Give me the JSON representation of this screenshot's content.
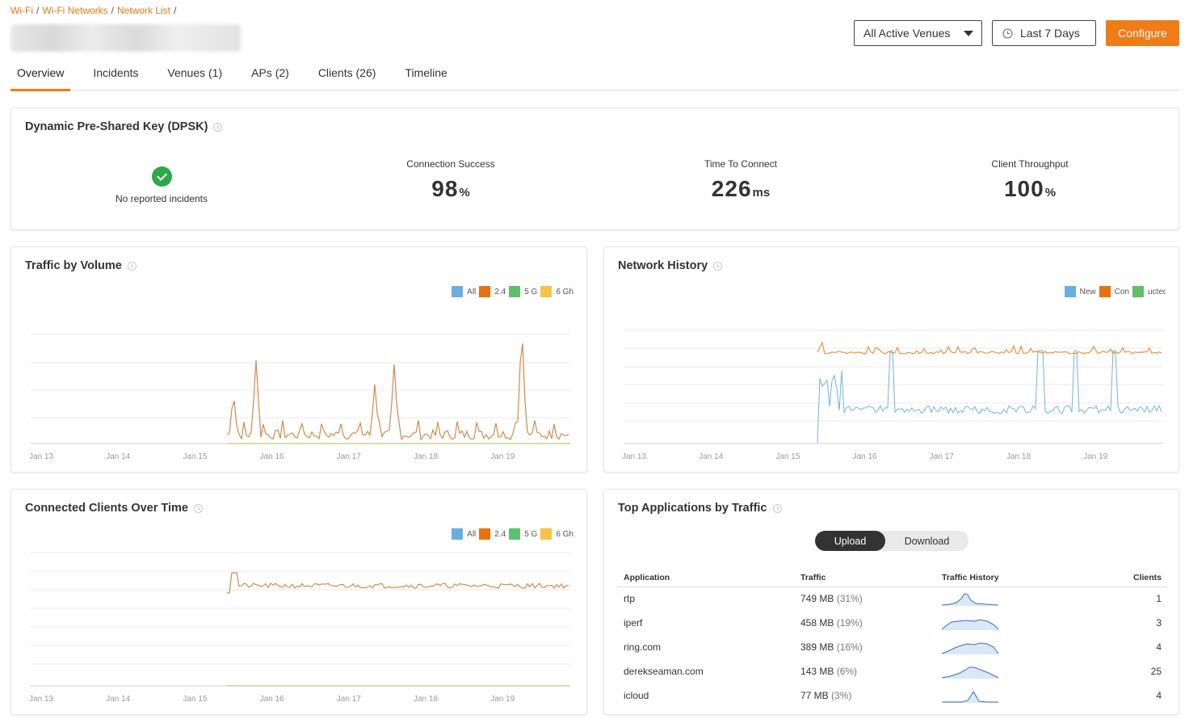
{
  "breadcrumb": [
    {
      "label": "Wi-Fi"
    },
    {
      "label": "Wi-Fi Networks"
    },
    {
      "label": "Network List"
    }
  ],
  "breadcrumb_separator": "/",
  "header": {
    "venue_select": "All Active Venues",
    "date_range": "Last 7 Days",
    "configure": "Configure"
  },
  "tabs": [
    {
      "label": "Overview",
      "active": true
    },
    {
      "label": "Incidents"
    },
    {
      "label": "Venues (1)"
    },
    {
      "label": "APs (2)"
    },
    {
      "label": "Clients (26)"
    },
    {
      "label": "Timeline"
    }
  ],
  "dpsk": {
    "title": "Dynamic Pre-Shared Key (DPSK)",
    "incidents_label": "No reported incidents",
    "kpis": [
      {
        "label": "Connection Success",
        "value": "98",
        "unit": "%"
      },
      {
        "label": "Time To Connect",
        "value": "226",
        "unit": "ms"
      },
      {
        "label": "Client Throughput",
        "value": "100",
        "unit": "%"
      }
    ]
  },
  "colors": {
    "accent": "#ef7c16",
    "all": "#6aaee0",
    "band24": "#e8700d",
    "band5": "#5fbf6c",
    "band6": "#f6c344",
    "history_orange": "#e4933f",
    "history_blue": "#72b3df"
  },
  "traffic_by_volume": {
    "title": "Traffic by Volume"
  },
  "network_history": {
    "title": "Network History"
  },
  "connected_clients": {
    "title": "Connected Clients Over Time"
  },
  "top_apps": {
    "title": "Top Applications by Traffic",
    "upload": "Upload",
    "download": "Download",
    "selected": "Upload",
    "columns": {
      "application": "Application",
      "traffic": "Traffic",
      "history": "Traffic History",
      "clients": "Clients"
    },
    "rows": [
      {
        "app": "rtp",
        "traffic": "749 MB",
        "pct": "(31%)",
        "clients": "1"
      },
      {
        "app": "iperf",
        "traffic": "458 MB",
        "pct": "(19%)",
        "clients": "3"
      },
      {
        "app": "ring.com",
        "traffic": "389 MB",
        "pct": "(16%)",
        "clients": "4"
      },
      {
        "app": "derekseaman.com",
        "traffic": "143 MB",
        "pct": "(6%)",
        "clients": "25"
      },
      {
        "app": "icloud",
        "traffic": "77 MB",
        "pct": "(3%)",
        "clients": "4"
      }
    ]
  },
  "chart_data": [
    {
      "id": "traffic_by_volume",
      "type": "line",
      "x_labels": [
        "Jan 13",
        "Jan 14",
        "Jan 15",
        "Jan 16",
        "Jan 17",
        "Jan 18",
        "Jan 19"
      ],
      "legend": [
        "All",
        "2.4",
        "5 G",
        "6 Gh"
      ],
      "grid": true,
      "series": [
        {
          "name": "2.4",
          "color": "#e8700d",
          "values": [
            0,
            0,
            0,
            0,
            0,
            0,
            0,
            0,
            0,
            0,
            0,
            0,
            0,
            0,
            0,
            0,
            0,
            0,
            0,
            0,
            0,
            0,
            0,
            0,
            0,
            0,
            0,
            0,
            0,
            0,
            0,
            0,
            0,
            0,
            0,
            0,
            0,
            0,
            0,
            0,
            0,
            0,
            0,
            0,
            0,
            0,
            0,
            0,
            0,
            0,
            0,
            0,
            0,
            0,
            0,
            0,
            0,
            0,
            0,
            0,
            0,
            0,
            0,
            0,
            0,
            0,
            0,
            0,
            0,
            0,
            0,
            0,
            0,
            0,
            0,
            0,
            0,
            0,
            0,
            0,
            0,
            0,
            0,
            0,
            0,
            0,
            0,
            0,
            0,
            0,
            0,
            0,
            0,
            0,
            0,
            0,
            0,
            0,
            0,
            0,
            0,
            0,
            0,
            0,
            0,
            0,
            0,
            0,
            0,
            0,
            0,
            0,
            0,
            0,
            0,
            0,
            0,
            0,
            0,
            0,
            0,
            0,
            0,
            0,
            0,
            0,
            0,
            0,
            0,
            0,
            0,
            0,
            0,
            0,
            0,
            0,
            0,
            0,
            0,
            0,
            0,
            0,
            0,
            0,
            0,
            0,
            0,
            0,
            0,
            0,
            0,
            0,
            0,
            0,
            0,
            0,
            0,
            0,
            0,
            0,
            0,
            0,
            0,
            0,
            0,
            0,
            0,
            0,
            0
          ]
        },
        {
          "name": "All",
          "color": "#d08a4a",
          "values": [
            0,
            0,
            0,
            0,
            0,
            0,
            0,
            0,
            0,
            0,
            0,
            0,
            0,
            0,
            0,
            0,
            0,
            0,
            0,
            0,
            0,
            0,
            0,
            0,
            0,
            0,
            0,
            0,
            0,
            0,
            0,
            0,
            0,
            0,
            0,
            0,
            0,
            0,
            0,
            0,
            0,
            0,
            0,
            0,
            0,
            0,
            0,
            0,
            0,
            0,
            0,
            0,
            0,
            0,
            0,
            0,
            0,
            0,
            0,
            0,
            0,
            0,
            0,
            0,
            0,
            0,
            0,
            0,
            0,
            0,
            0,
            0,
            0,
            0,
            0,
            0,
            0,
            0,
            0,
            0,
            0,
            0,
            0,
            0,
            0,
            0,
            0,
            0,
            0,
            0,
            0,
            0,
            0,
            0,
            0,
            0,
            0,
            0,
            0,
            0,
            0,
            0,
            0,
            0,
            0,
            0,
            0,
            0,
            0,
            0,
            0,
            0,
            0,
            0,
            0,
            0,
            0,
            0,
            0,
            0,
            0,
            0,
            0,
            0,
            0,
            0,
            0,
            0,
            0,
            0,
            0,
            0,
            0,
            0,
            0,
            0,
            0,
            0,
            0,
            0,
            0,
            0,
            0,
            0,
            0,
            0,
            0,
            0,
            0,
            0,
            0,
            0,
            0,
            0,
            0,
            0,
            0,
            0,
            0,
            0,
            0,
            0,
            0,
            0,
            0,
            0,
            0,
            0,
            0
          ]
        }
      ]
    },
    {
      "id": "network_history",
      "type": "line",
      "x_labels": [
        "Jan 13",
        "Jan 14",
        "Jan 15",
        "Jan 16",
        "Jan 17",
        "Jan 18",
        "Jan 19"
      ],
      "legend": [
        "New",
        "Con",
        "ucted"
      ],
      "grid": true,
      "series": []
    },
    {
      "id": "connected_clients",
      "type": "line",
      "x_labels": [
        "Jan 13",
        "Jan 14",
        "Jan 15",
        "Jan 16",
        "Jan 17",
        "Jan 18",
        "Jan 19"
      ],
      "legend": [
        "All",
        "2.4",
        "5 G",
        "6 Gh"
      ],
      "grid": true,
      "series": []
    }
  ]
}
